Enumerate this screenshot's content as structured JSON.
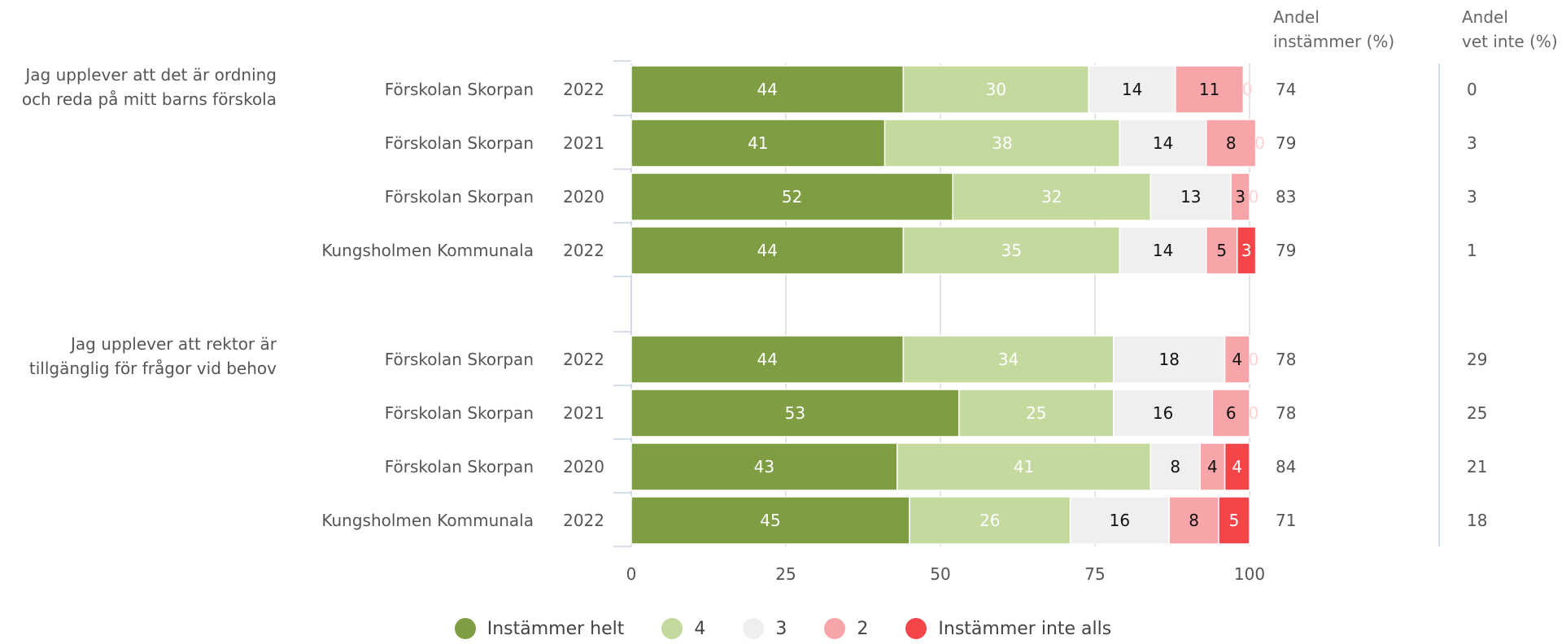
{
  "chart_data": {
    "type": "bar",
    "orientation": "horizontal",
    "stacked": true,
    "xlim": [
      0,
      100
    ],
    "x_ticks": [
      "0",
      "25",
      "50",
      "75",
      "100"
    ],
    "grid": "vertical",
    "legend_position": "bottom",
    "column_headers": {
      "share_agree": "Andel\ninstämmer (%)",
      "share_dont_know": "Andel\nvet inte (%)"
    },
    "series": [
      {
        "name": "Instämmer helt",
        "color": "#7f9d43",
        "label_color": "#ffffff"
      },
      {
        "name": "4",
        "color": "#c4d99d",
        "label_color": "#ffffff"
      },
      {
        "name": "3",
        "color": "#efefef",
        "label_color": "#111111"
      },
      {
        "name": "2",
        "color": "#f7a5a8",
        "label_color": "#111111"
      },
      {
        "name": "Instämmer inte alls",
        "color": "#f44549",
        "label_color": "#ffffff"
      }
    ],
    "groups": [
      {
        "question": "Jag upplever att det är ordning\noch reda på mitt barns förskola",
        "rows": [
          {
            "unit": "Förskolan Skorpan",
            "year": "2022",
            "values": [
              44,
              30,
              14,
              11,
              0
            ],
            "labels": [
              "44",
              "30",
              "14",
              "11",
              "0"
            ],
            "share_agree": "74",
            "share_dont_know": "0"
          },
          {
            "unit": "Förskolan Skorpan",
            "year": "2021",
            "values": [
              41,
              38,
              14,
              8,
              0
            ],
            "labels": [
              "41",
              "38",
              "14",
              "8",
              "0"
            ],
            "share_agree": "79",
            "share_dont_know": "3"
          },
          {
            "unit": "Förskolan Skorpan",
            "year": "2020",
            "values": [
              52,
              32,
              13,
              3,
              0
            ],
            "labels": [
              "52",
              "32",
              "13",
              "3",
              "0"
            ],
            "share_agree": "83",
            "share_dont_know": "3"
          },
          {
            "unit": "Kungsholmen Kommunala",
            "year": "2022",
            "values": [
              44,
              35,
              14,
              5,
              3
            ],
            "labels": [
              "44",
              "35",
              "14",
              "5",
              "3"
            ],
            "share_agree": "79",
            "share_dont_know": "1"
          }
        ]
      },
      {
        "question": "Jag upplever att rektor är\ntillgänglig för frågor vid behov",
        "rows": [
          {
            "unit": "Förskolan Skorpan",
            "year": "2022",
            "values": [
              44,
              34,
              18,
              4,
              0
            ],
            "labels": [
              "44",
              "34",
              "18",
              "4",
              "0"
            ],
            "share_agree": "78",
            "share_dont_know": "29"
          },
          {
            "unit": "Förskolan Skorpan",
            "year": "2021",
            "values": [
              53,
              25,
              16,
              6,
              0
            ],
            "labels": [
              "53",
              "25",
              "16",
              "6",
              "0"
            ],
            "share_agree": "78",
            "share_dont_know": "25"
          },
          {
            "unit": "Förskolan Skorpan",
            "year": "2020",
            "values": [
              43,
              41,
              8,
              4,
              4
            ],
            "labels": [
              "43",
              "41",
              "8",
              "4",
              "4"
            ],
            "share_agree": "84",
            "share_dont_know": "21"
          },
          {
            "unit": "Kungsholmen Kommunala",
            "year": "2022",
            "values": [
              45,
              26,
              16,
              8,
              5
            ],
            "labels": [
              "45",
              "26",
              "16",
              "8",
              "5"
            ],
            "share_agree": "71",
            "share_dont_know": "18"
          }
        ]
      }
    ]
  }
}
